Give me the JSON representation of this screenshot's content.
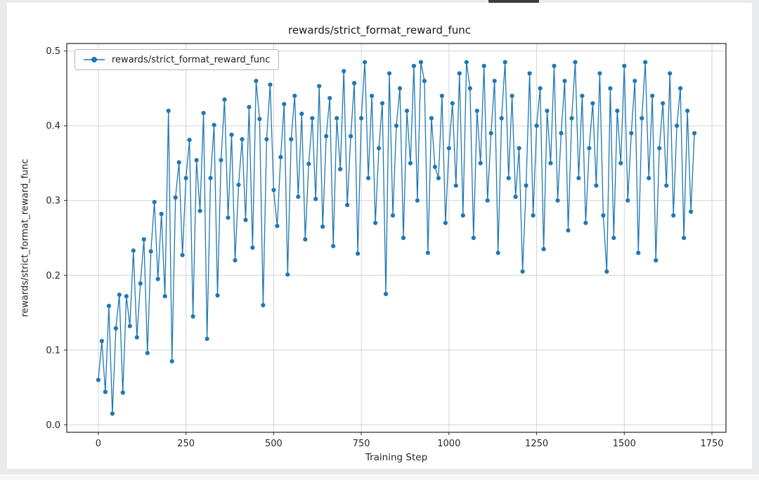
{
  "chart_data": {
    "type": "line",
    "title": "rewards/strict_format_reward_func",
    "xlabel": "Training Step",
    "ylabel": "rewards/strict_format_reward_func",
    "legend_label": "rewards/strict_format_reward_func",
    "legend_position": "upper left",
    "grid": true,
    "marker": "o",
    "line_color": "#1f77b4",
    "xlim": [
      -90,
      1790
    ],
    "ylim": [
      -0.01,
      0.51
    ],
    "xticks": [
      0,
      250,
      500,
      750,
      1000,
      1250,
      1500,
      1750
    ],
    "xtick_labels": [
      "0",
      "250",
      "500",
      "750",
      "1000",
      "1250",
      "1500",
      "1750"
    ],
    "yticks": [
      0.0,
      0.1,
      0.2,
      0.3,
      0.4,
      0.5
    ],
    "ytick_labels": [
      "0.0",
      "0.1",
      "0.2",
      "0.3",
      "0.4",
      "0.5"
    ],
    "series": [
      {
        "name": "rewards/strict_format_reward_func",
        "points": [
          [
            0,
            0.06
          ],
          [
            10,
            0.112
          ],
          [
            20,
            0.044
          ],
          [
            30,
            0.159
          ],
          [
            40,
            0.015
          ],
          [
            50,
            0.129
          ],
          [
            60,
            0.174
          ],
          [
            70,
            0.043
          ],
          [
            80,
            0.172
          ],
          [
            90,
            0.132
          ],
          [
            100,
            0.233
          ],
          [
            110,
            0.117
          ],
          [
            120,
            0.189
          ],
          [
            130,
            0.248
          ],
          [
            140,
            0.096
          ],
          [
            150,
            0.232
          ],
          [
            160,
            0.298
          ],
          [
            170,
            0.195
          ],
          [
            180,
            0.282
          ],
          [
            190,
            0.172
          ],
          [
            200,
            0.42
          ],
          [
            210,
            0.085
          ],
          [
            220,
            0.304
          ],
          [
            230,
            0.351
          ],
          [
            240,
            0.227
          ],
          [
            250,
            0.33
          ],
          [
            260,
            0.381
          ],
          [
            270,
            0.145
          ],
          [
            280,
            0.354
          ],
          [
            290,
            0.286
          ],
          [
            300,
            0.417
          ],
          [
            310,
            0.115
          ],
          [
            320,
            0.33
          ],
          [
            330,
            0.401
          ],
          [
            340,
            0.173
          ],
          [
            350,
            0.354
          ],
          [
            360,
            0.435
          ],
          [
            370,
            0.277
          ],
          [
            380,
            0.388
          ],
          [
            390,
            0.22
          ],
          [
            400,
            0.321
          ],
          [
            410,
            0.382
          ],
          [
            420,
            0.274
          ],
          [
            430,
            0.425
          ],
          [
            440,
            0.237
          ],
          [
            450,
            0.46
          ],
          [
            460,
            0.409
          ],
          [
            470,
            0.16
          ],
          [
            480,
            0.382
          ],
          [
            490,
            0.455
          ],
          [
            500,
            0.314
          ],
          [
            510,
            0.266
          ],
          [
            520,
            0.358
          ],
          [
            530,
            0.429
          ],
          [
            540,
            0.201
          ],
          [
            550,
            0.382
          ],
          [
            560,
            0.44
          ],
          [
            570,
            0.305
          ],
          [
            580,
            0.416
          ],
          [
            590,
            0.248
          ],
          [
            600,
            0.349
          ],
          [
            610,
            0.41
          ],
          [
            620,
            0.302
          ],
          [
            630,
            0.453
          ],
          [
            640,
            0.265
          ],
          [
            650,
            0.386
          ],
          [
            660,
            0.437
          ],
          [
            670,
            0.239
          ],
          [
            680,
            0.41
          ],
          [
            690,
            0.342
          ],
          [
            700,
            0.473
          ],
          [
            710,
            0.294
          ],
          [
            720,
            0.386
          ],
          [
            730,
            0.457
          ],
          [
            740,
            0.229
          ],
          [
            750,
            0.41
          ],
          [
            760,
            0.485
          ],
          [
            770,
            0.33
          ],
          [
            780,
            0.44
          ],
          [
            790,
            0.27
          ],
          [
            800,
            0.37
          ],
          [
            810,
            0.43
          ],
          [
            820,
            0.175
          ],
          [
            830,
            0.47
          ],
          [
            840,
            0.28
          ],
          [
            850,
            0.4
          ],
          [
            860,
            0.45
          ],
          [
            870,
            0.25
          ],
          [
            880,
            0.42
          ],
          [
            890,
            0.35
          ],
          [
            900,
            0.48
          ],
          [
            910,
            0.3
          ],
          [
            920,
            0.485
          ],
          [
            930,
            0.46
          ],
          [
            940,
            0.23
          ],
          [
            950,
            0.41
          ],
          [
            960,
            0.345
          ],
          [
            970,
            0.33
          ],
          [
            980,
            0.44
          ],
          [
            990,
            0.27
          ],
          [
            1000,
            0.37
          ],
          [
            1010,
            0.43
          ],
          [
            1020,
            0.32
          ],
          [
            1030,
            0.47
          ],
          [
            1040,
            0.28
          ],
          [
            1050,
            0.485
          ],
          [
            1060,
            0.45
          ],
          [
            1070,
            0.25
          ],
          [
            1080,
            0.42
          ],
          [
            1090,
            0.35
          ],
          [
            1100,
            0.48
          ],
          [
            1110,
            0.3
          ],
          [
            1120,
            0.39
          ],
          [
            1130,
            0.46
          ],
          [
            1140,
            0.23
          ],
          [
            1150,
            0.41
          ],
          [
            1160,
            0.485
          ],
          [
            1170,
            0.33
          ],
          [
            1180,
            0.44
          ],
          [
            1190,
            0.305
          ],
          [
            1200,
            0.37
          ],
          [
            1210,
            0.205
          ],
          [
            1220,
            0.32
          ],
          [
            1230,
            0.47
          ],
          [
            1240,
            0.28
          ],
          [
            1250,
            0.4
          ],
          [
            1260,
            0.45
          ],
          [
            1270,
            0.235
          ],
          [
            1280,
            0.42
          ],
          [
            1290,
            0.35
          ],
          [
            1300,
            0.48
          ],
          [
            1310,
            0.3
          ],
          [
            1320,
            0.39
          ],
          [
            1330,
            0.46
          ],
          [
            1340,
            0.26
          ],
          [
            1350,
            0.41
          ],
          [
            1360,
            0.485
          ],
          [
            1370,
            0.33
          ],
          [
            1380,
            0.44
          ],
          [
            1390,
            0.27
          ],
          [
            1400,
            0.37
          ],
          [
            1410,
            0.43
          ],
          [
            1420,
            0.32
          ],
          [
            1430,
            0.47
          ],
          [
            1440,
            0.28
          ],
          [
            1450,
            0.205
          ],
          [
            1460,
            0.45
          ],
          [
            1470,
            0.25
          ],
          [
            1480,
            0.42
          ],
          [
            1490,
            0.35
          ],
          [
            1500,
            0.48
          ],
          [
            1510,
            0.3
          ],
          [
            1520,
            0.39
          ],
          [
            1530,
            0.46
          ],
          [
            1540,
            0.23
          ],
          [
            1550,
            0.41
          ],
          [
            1560,
            0.485
          ],
          [
            1570,
            0.33
          ],
          [
            1580,
            0.44
          ],
          [
            1590,
            0.22
          ],
          [
            1600,
            0.37
          ],
          [
            1610,
            0.43
          ],
          [
            1620,
            0.32
          ],
          [
            1630,
            0.47
          ],
          [
            1640,
            0.28
          ],
          [
            1650,
            0.4
          ],
          [
            1660,
            0.45
          ],
          [
            1670,
            0.25
          ],
          [
            1680,
            0.42
          ],
          [
            1690,
            0.285
          ],
          [
            1700,
            0.39
          ]
        ]
      }
    ]
  }
}
